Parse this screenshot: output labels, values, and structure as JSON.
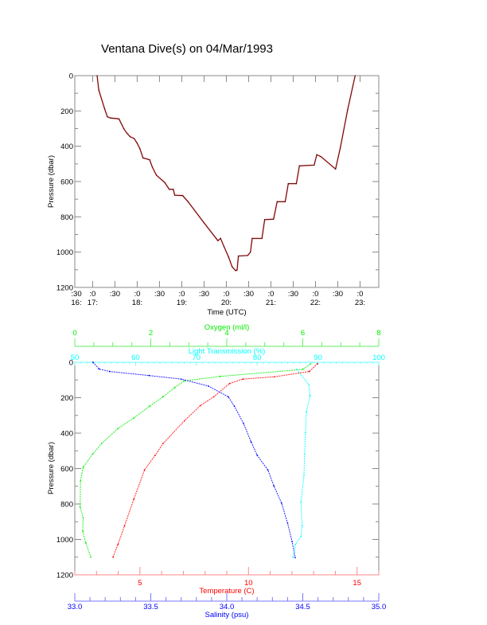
{
  "title": "Ventana Dive(s) on 04/Mar/1993",
  "colors": {
    "axis": "#888888",
    "oxygen": "#00ee00",
    "oxygen_axis": "#66ee66",
    "light": "#00ffff",
    "light_axis": "#66ffff",
    "temperature": "#ff0000",
    "temperature_axis": "#ff8888",
    "salinity": "#0000ff",
    "salinity_axis": "#7777ff",
    "track": "#3a0000",
    "track_overlay": "#ff6666"
  },
  "chart_data": [
    {
      "type": "line",
      "xlabel": "Time (UTC)",
      "ylabel": "Pressure (dbar)",
      "xlim_hours": [
        16.6,
        23.42
      ],
      "ylim": [
        1200,
        0
      ],
      "y_ticks": [
        0,
        200,
        400,
        600,
        800,
        1000,
        1200
      ],
      "y_tick_labels": [
        "0",
        "200",
        "400",
        "600",
        "800",
        "1000",
        "1200"
      ],
      "x_ticks_hours": [
        16.5,
        17,
        17.5,
        18,
        18.5,
        19,
        19.5,
        20,
        20.5,
        21,
        21.5,
        22,
        22.5,
        23
      ],
      "x_tick_labels": [
        [
          ":30",
          "16:"
        ],
        [
          ":0",
          "17:"
        ],
        [
          ":30",
          ""
        ],
        [
          ":0",
          "18:"
        ],
        [
          ":30",
          ""
        ],
        [
          ":0",
          "19:"
        ],
        [
          ":30",
          ""
        ],
        [
          ":0",
          "20:"
        ],
        [
          ":30",
          ""
        ],
        [
          ":0",
          "21:"
        ],
        [
          ":30",
          ""
        ],
        [
          ":0",
          "22:"
        ],
        [
          ":30",
          ""
        ],
        [
          ":0",
          "23:"
        ]
      ],
      "series": [
        {
          "x_hours": [
            17.1,
            17.14,
            17.27,
            17.33,
            17.4,
            17.59,
            17.7,
            17.77,
            17.84,
            17.93,
            18.0,
            18.06,
            18.13,
            18.28,
            18.34,
            18.43,
            18.62,
            18.72,
            18.81,
            18.84,
            19.02,
            19.14,
            19.5,
            19.81,
            19.87,
            19.95,
            20.05,
            20.13,
            20.21,
            20.24,
            20.27,
            20.48,
            20.54,
            20.58,
            20.8,
            20.86,
            21.06,
            21.14,
            21.32,
            21.39,
            21.57,
            21.64,
            21.97,
            22.03,
            22.12,
            22.45,
            22.56,
            22.72,
            22.89
          ],
          "pressure": [
            0,
            83,
            188,
            233,
            240,
            245,
            301,
            326,
            346,
            356,
            383,
            414,
            466,
            477,
            519,
            564,
            606,
            644,
            644,
            677,
            680,
            714,
            834,
            935,
            922,
            970,
            1027,
            1083,
            1105,
            1102,
            1022,
            1019,
            1000,
            922,
            922,
            816,
            813,
            714,
            714,
            612,
            612,
            511,
            507,
            448,
            459,
            529,
            406,
            195,
            0
          ]
        }
      ]
    },
    {
      "type": "line",
      "ylabel": "Pressure (dbar)",
      "ylim": [
        1200,
        0
      ],
      "y_ticks": [
        0,
        200,
        400,
        600,
        800,
        1000,
        1200
      ],
      "y_tick_labels": [
        "0",
        "200",
        "400",
        "600",
        "800",
        "1000",
        "1200"
      ],
      "axes": {
        "oxygen": {
          "label": "Oxygen (ml/l)",
          "lim": [
            0,
            8
          ],
          "ticks": [
            0,
            2,
            4,
            6,
            8
          ],
          "tick_labels": [
            "0",
            "2",
            "4",
            "6",
            "8"
          ],
          "minor": 0.5
        },
        "light": {
          "label": "Light Transmission (%)",
          "lim": [
            50,
            100
          ],
          "ticks": [
            50,
            60,
            70,
            80,
            90,
            100
          ],
          "tick_labels": [
            "50",
            "60",
            "70",
            "80",
            "90",
            "100"
          ],
          "minor": 1
        },
        "temperature": {
          "label": "Temperature (C)",
          "lim": [
            2,
            16
          ],
          "ticks": [
            5,
            10,
            15
          ],
          "tick_labels": [
            "5",
            "10",
            "15"
          ],
          "minor": 1
        },
        "salinity": {
          "label": "Salinity (psu)",
          "lim": [
            33.0,
            35.0
          ],
          "ticks": [
            33.0,
            33.5,
            34.0,
            34.5,
            35.0
          ],
          "tick_labels": [
            "33.0",
            "33.5",
            "34.0",
            "34.5",
            "35.0"
          ],
          "minor": 0.1
        }
      },
      "series": [
        {
          "axis": "oxygen",
          "values": [
            6.2,
            6.0,
            3.82,
            2.88,
            2.63,
            2.32,
            1.97,
            1.55,
            1.13,
            0.71,
            0.47,
            0.22,
            0.15,
            0.14,
            0.22,
            0.21,
            0.29,
            0.42
          ],
          "pressure": [
            10,
            40,
            80,
            105,
            143,
            195,
            248,
            315,
            375,
            458,
            518,
            593,
            668,
            818,
            878,
            953,
            1020,
            1100
          ]
        },
        {
          "axis": "temperature",
          "values": [
            13.18,
            12.8,
            11.2,
            9.75,
            9.13,
            8.4,
            7.78,
            7.05,
            6.07,
            5.7,
            5.21,
            4.72,
            4.29,
            3.99,
            3.76
          ],
          "pressure": [
            8,
            52,
            82,
            95,
            120,
            195,
            245,
            330,
            458,
            525,
            608,
            773,
            923,
            1028,
            1100
          ]
        },
        {
          "axis": "salinity",
          "values": [
            33.12,
            33.16,
            33.23,
            33.49,
            33.7,
            33.88,
            34.01,
            34.05,
            34.11,
            34.16,
            34.2,
            34.27,
            34.31,
            34.36,
            34.4,
            34.43,
            34.45
          ],
          "pressure": [
            0,
            38,
            52,
            75,
            95,
            135,
            195,
            248,
            345,
            450,
            525,
            608,
            698,
            795,
            908,
            1013,
            1103
          ]
        },
        {
          "axis": "light",
          "values": [
            86.5,
            88.5,
            88.7,
            88.1,
            87.95,
            87.8,
            87.7,
            87.2,
            87.4,
            87.2,
            86.3,
            85.9
          ],
          "pressure": [
            40,
            127,
            188,
            278,
            398,
            518,
            638,
            788,
            923,
            983,
            1028,
            1100
          ]
        }
      ]
    }
  ]
}
